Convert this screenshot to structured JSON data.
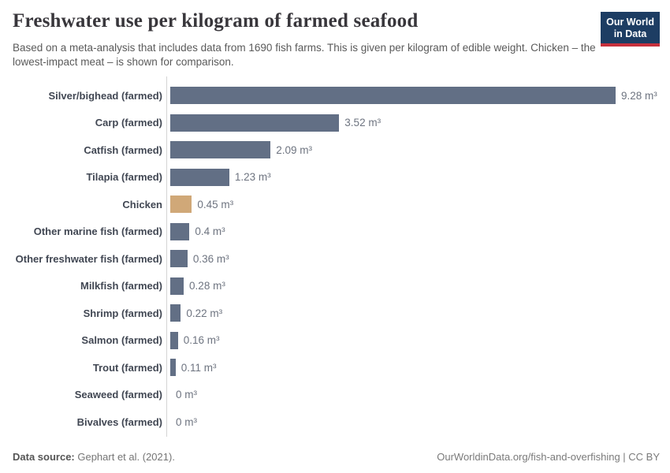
{
  "header": {
    "title": "Freshwater use per kilogram of farmed seafood",
    "subtitle": "Based on a meta-analysis that includes data from 1690 fish farms. This is given per kilogram of edible weight. Chicken – the lowest-impact meat – is shown for comparison.",
    "logo": {
      "line1": "Our World",
      "line2": "in Data"
    }
  },
  "chart_data": {
    "type": "bar",
    "orientation": "horizontal",
    "title": "Freshwater use per kilogram of farmed seafood",
    "categories": [
      "Silver/bighead (farmed)",
      "Carp (farmed)",
      "Catfish (farmed)",
      "Tilapia (farmed)",
      "Chicken",
      "Other marine fish (farmed)",
      "Other freshwater fish (farmed)",
      "Milkfish (farmed)",
      "Shrimp (farmed)",
      "Salmon (farmed)",
      "Trout (farmed)",
      "Seaweed (farmed)",
      "Bivalves (farmed)"
    ],
    "values": [
      9.28,
      3.52,
      2.09,
      1.23,
      0.45,
      0.4,
      0.36,
      0.28,
      0.22,
      0.16,
      0.11,
      0,
      0
    ],
    "value_labels": [
      "9.28 m³",
      "3.52 m³",
      "2.09 m³",
      "1.23 m³",
      "0.45 m³",
      "0.4 m³",
      "0.36 m³",
      "0.28 m³",
      "0.22 m³",
      "0.16 m³",
      "0.11 m³",
      "0 m³",
      "0 m³"
    ],
    "unit": "m³",
    "xlim": [
      0,
      9.28
    ],
    "grid": false,
    "legend": "none",
    "highlight_category": "Chicken",
    "bar_color": "#626f85",
    "highlight_color": "#d0a878"
  },
  "colors": {
    "bar": "#626f85",
    "highlight": "#d0a878",
    "axis_line": "#d4d4d4",
    "logo_navy": "#1d3d63",
    "logo_red": "#c7303c"
  },
  "footer": {
    "datasource_label": "Data source:",
    "datasource_value": " Gephart et al. (2021).",
    "url": "OurWorldinData.org/fish-and-overfishing | CC BY"
  }
}
